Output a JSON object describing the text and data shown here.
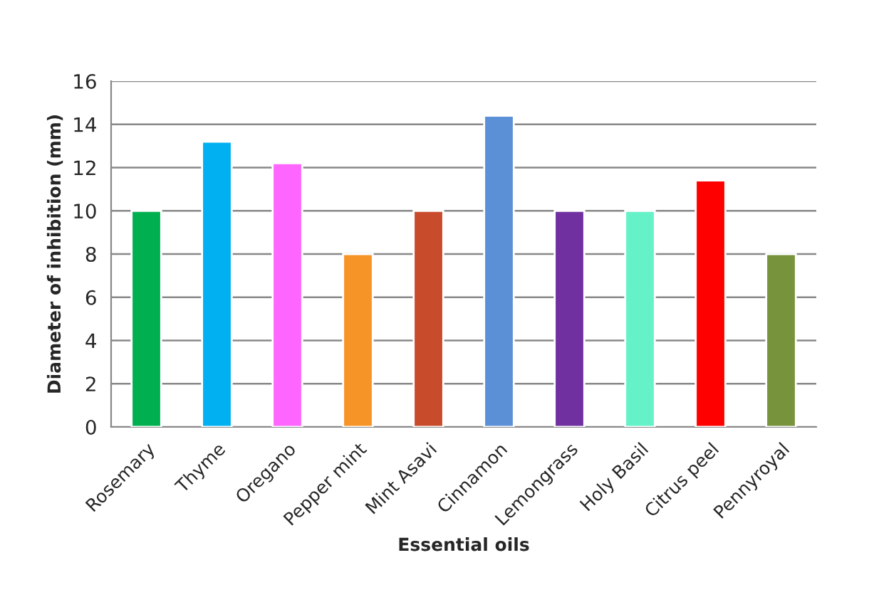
{
  "chart_data": {
    "type": "bar",
    "xlabel": "Essential oils",
    "ylabel": "Diameter of inhibition (mm)",
    "categories": [
      "Rosemary",
      "Thyme",
      "Oregano",
      "Pepper mint",
      "Mint Asavi",
      "Cinnamon",
      "Lemongrass",
      "Holy Basil",
      "Citrus peel",
      "Pennyroyal"
    ],
    "values": [
      10,
      13.2,
      12.2,
      8,
      10,
      14.4,
      10,
      10,
      11.4,
      8
    ],
    "colors": [
      "#00b050",
      "#00b0f0",
      "#ff66ff",
      "#f79428",
      "#c84b2c",
      "#5b8fd6",
      "#7030a0",
      "#66f2c8",
      "#ff0000",
      "#77933c"
    ],
    "ylim": [
      0,
      16
    ],
    "yticks": [
      0,
      2,
      4,
      6,
      8,
      10,
      12,
      14,
      16
    ],
    "grid": "y",
    "legend": false
  }
}
